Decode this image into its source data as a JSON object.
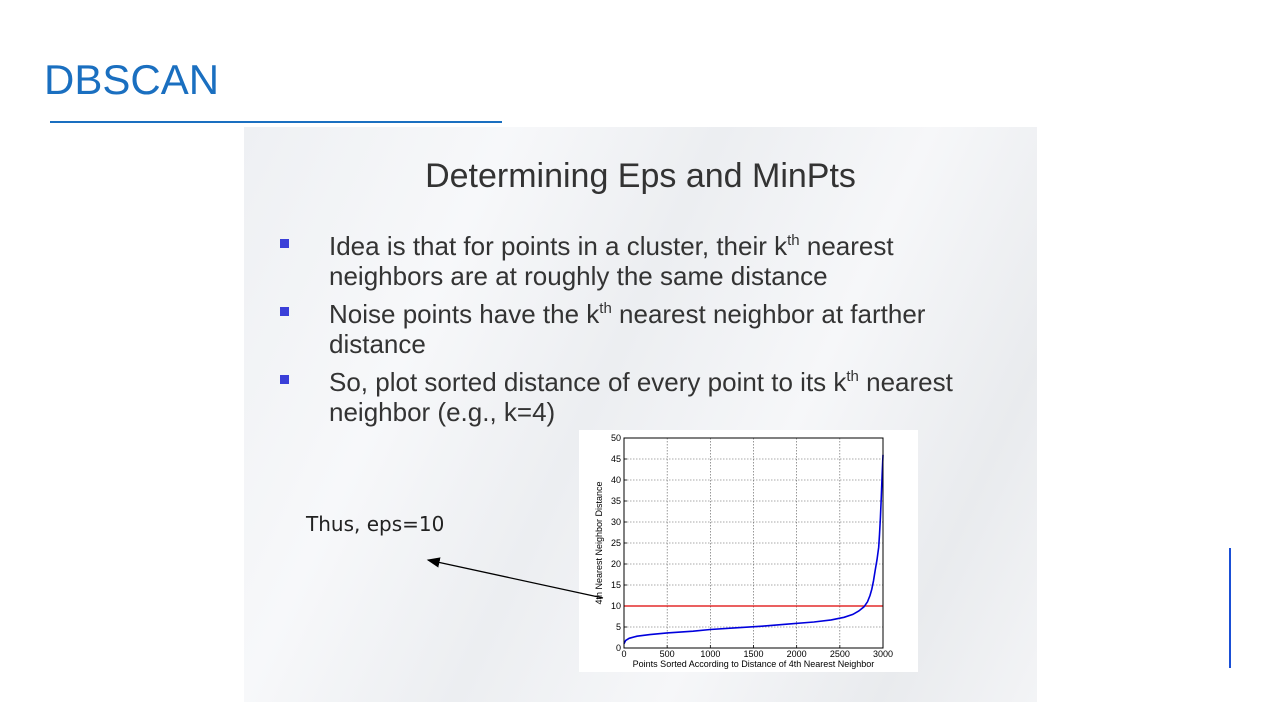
{
  "slide": {
    "title": "DBSCAN",
    "heading": "Determining Eps and MinPts",
    "bullets": [
      {
        "pre": "Idea is that for points in a cluster, their k",
        "sup": "th",
        "post": " nearest neighbors are at roughly the same distance"
      },
      {
        "pre": "Noise points have the k",
        "sup": "th",
        "post": " nearest neighbor at farther distance"
      },
      {
        "pre": "So, plot sorted distance of every point to its k",
        "sup": "th",
        "post": " nearest neighbor (e.g., k=4)"
      }
    ],
    "annotation": "Thus, eps=10"
  },
  "colors": {
    "title": "#1a6fc0",
    "curve": "#0000dd",
    "threshold": "#dd0000",
    "bullet": "#3a3fd8"
  },
  "chart_data": {
    "type": "line",
    "xlabel": "Points Sorted According to Distance of 4th Nearest Neighbor",
    "ylabel": "4th Nearest Neighbor Distance",
    "xlim": [
      0,
      3000
    ],
    "ylim": [
      0,
      50
    ],
    "xticks": [
      "0",
      "500",
      "1000",
      "1500",
      "2000",
      "2500",
      "3000"
    ],
    "yticks": [
      "0",
      "5",
      "10",
      "15",
      "20",
      "25",
      "30",
      "35",
      "40",
      "45",
      "50"
    ],
    "grid": true,
    "series": [
      {
        "x": [
          0,
          20,
          60,
          150,
          300,
          500,
          800,
          1000,
          1300,
          1600,
          1900,
          2200,
          2400,
          2550,
          2650,
          2720,
          2780,
          2820,
          2850,
          2870,
          2890,
          2910,
          2930,
          2950,
          2960,
          2970,
          2980,
          2990,
          3000
        ],
        "y": [
          1.0,
          1.8,
          2.3,
          2.8,
          3.2,
          3.6,
          4.0,
          4.4,
          4.8,
          5.2,
          5.7,
          6.2,
          6.7,
          7.3,
          8.0,
          8.8,
          9.8,
          11.0,
          12.5,
          14.0,
          16.0,
          18.5,
          21.0,
          24.0,
          27.0,
          31.0,
          36.0,
          41.0,
          46.0
        ]
      }
    ],
    "hlines": [
      10
    ]
  }
}
